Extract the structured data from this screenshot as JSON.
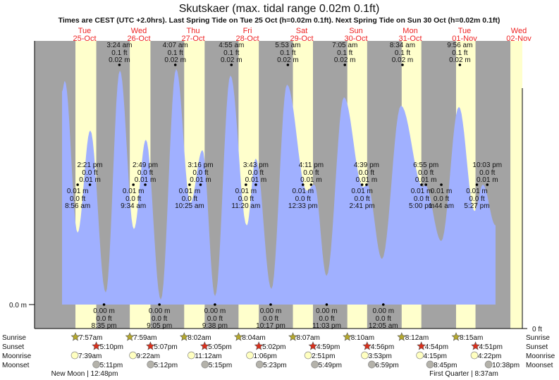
{
  "chart_data": {
    "type": "area",
    "title": "Skutskaer (max. tidal range 0.02m 0.1ft)",
    "subtitle": "Times are CEST (UTC +2.0hrs). Last Spring Tide on Tue 25 Oct (h=0.02m 0.1ft). Next Spring Tide on Sun 30 Oct (h=0.02m 0.1ft)",
    "y_left_label": "0.0 m",
    "y_right_label": "0 ft",
    "ylim_m": [
      0,
      0.02
    ],
    "days": [
      {
        "dow": "Tue",
        "date": "25-Oct"
      },
      {
        "dow": "Wed",
        "date": "26-Oct"
      },
      {
        "dow": "Thu",
        "date": "27-Oct"
      },
      {
        "dow": "Fri",
        "date": "28-Oct"
      },
      {
        "dow": "Sat",
        "date": "29-Oct"
      },
      {
        "dow": "Sun",
        "date": "30-Oct"
      },
      {
        "dow": "Mon",
        "date": "31-Oct"
      },
      {
        "dow": "Tue",
        "date": "01-Nov"
      },
      {
        "dow": "Wed",
        "date": "02-Nov"
      }
    ],
    "curve_hours_m": [
      [
        2.03,
        0.0178
      ],
      [
        3.27,
        0.01865
      ],
      [
        8.9,
        0.006
      ],
      [
        14.5,
        0.01453
      ],
      [
        21.35,
        0.001
      ],
      [
        27.6,
        0.01953
      ],
      [
        33.8,
        0.0063
      ],
      [
        39.1,
        0.01376
      ],
      [
        45.7,
        0.0004
      ],
      [
        52.5,
        0.01965
      ],
      [
        58.8,
        0.0085
      ],
      [
        64.1,
        0.01288
      ],
      [
        69.7,
        0.0007
      ],
      [
        76.5,
        0.01912
      ],
      [
        83.7,
        0.0066
      ],
      [
        87.7,
        0.01218
      ],
      [
        94.6,
        0.0013
      ],
      [
        101.5,
        0.01835
      ],
      [
        110.2,
        0.0095
      ],
      [
        113.6,
        0.01
      ],
      [
        119,
        0.0024
      ],
      [
        126.7,
        0.0173
      ],
      [
        135.1,
        0.0098
      ],
      [
        137,
        0.01
      ],
      [
        143.5,
        0.0038
      ],
      [
        151.9,
        0.0166
      ],
      [
        161.6,
        0.0098
      ],
      [
        162.5,
        0.01
      ],
      [
        169.7,
        0.0053
      ],
      [
        177.5,
        0.0165
      ],
      [
        184.4,
        0.0078
      ],
      [
        188.1,
        0.01
      ],
      [
        193.7,
        0.0066
      ]
    ],
    "extremes": [
      {
        "day": 1,
        "time": "3:24 am",
        "ft": "0.1 ft",
        "m": "0.02 m",
        "h": 0.02,
        "kind": "high"
      },
      {
        "day": 2,
        "time": "4:07 am",
        "ft": "0.1 ft",
        "m": "0.02 m",
        "h": 0.02,
        "kind": "high"
      },
      {
        "day": 3,
        "time": "4:55 am",
        "ft": "0.1 ft",
        "m": "0.02 m",
        "h": 0.02,
        "kind": "high"
      },
      {
        "day": 4,
        "time": "5:53 am",
        "ft": "0.1 ft",
        "m": "0.02 m",
        "h": 0.02,
        "kind": "high"
      },
      {
        "day": 5,
        "time": "7:05 am",
        "ft": "0.1 ft",
        "m": "0.02 m",
        "h": 0.02,
        "kind": "high"
      },
      {
        "day": 6,
        "time": "8:34 am",
        "ft": "0.1 ft",
        "m": "0.02 m",
        "h": 0.02,
        "kind": "high"
      },
      {
        "day": 7,
        "time": "9:56 am",
        "ft": "0.1 ft",
        "m": "0.02 m",
        "h": 0.02,
        "kind": "high"
      },
      {
        "day": 0,
        "time": "2:21 pm",
        "ft": "0.0 ft",
        "m": "0.01 m",
        "h": 0.01,
        "kind": "high"
      },
      {
        "day": 1,
        "time": "2:49 pm",
        "ft": "0.0 ft",
        "m": "0.01 m",
        "h": 0.01,
        "kind": "high"
      },
      {
        "day": 2,
        "time": "3:16 pm",
        "ft": "0.0 ft",
        "m": "0.01 m",
        "h": 0.01,
        "kind": "high"
      },
      {
        "day": 3,
        "time": "3:43 pm",
        "ft": "0.0 ft",
        "m": "0.01 m",
        "h": 0.01,
        "kind": "high"
      },
      {
        "day": 4,
        "time": "4:11 pm",
        "ft": "0.0 ft",
        "m": "0.01 m",
        "h": 0.01,
        "kind": "high"
      },
      {
        "day": 5,
        "time": "4:39 pm",
        "ft": "0.0 ft",
        "m": "0.01 m",
        "h": 0.01,
        "kind": "high"
      },
      {
        "day": 6,
        "time": "6:55 pm",
        "ft": "0.0 ft",
        "m": "0.01 m",
        "h": 0.01,
        "kind": "high"
      },
      {
        "day": 7,
        "time": "10:03 pm",
        "ft": "0.0 ft",
        "m": "0.01 m",
        "h": 0.01,
        "kind": "high"
      },
      {
        "day": 0,
        "time": "8:56 am",
        "ft": "0.0 ft",
        "m": "0.01 m",
        "h": 0.01,
        "kind": "low"
      },
      {
        "day": 1,
        "time": "9:34 am",
        "ft": "0.0 ft",
        "m": "0.01 m",
        "h": 0.01,
        "kind": "low"
      },
      {
        "day": 2,
        "time": "10:25 am",
        "ft": "0.0 ft",
        "m": "0.01 m",
        "h": 0.01,
        "kind": "low"
      },
      {
        "day": 3,
        "time": "11:20 am",
        "ft": "0.0 ft",
        "m": "0.01 m",
        "h": 0.01,
        "kind": "low"
      },
      {
        "day": 4,
        "time": "12:33 pm",
        "ft": "0.0 ft",
        "m": "0.01 m",
        "h": 0.01,
        "kind": "low"
      },
      {
        "day": 5,
        "time": "2:41 pm",
        "ft": "0.0 ft",
        "m": "0.01 m",
        "h": 0.01,
        "kind": "low"
      },
      {
        "day": 6,
        "time": "5:00 pm",
        "ft": "0.0 ft",
        "m": "0.01 m",
        "h": 0.01,
        "kind": "low"
      },
      {
        "day": 7,
        "time": "1:44 am",
        "ft": "0.0 ft",
        "m": "0.01 m",
        "h": 0.01,
        "kind": "low"
      },
      {
        "day": 7,
        "time": "5:27 pm",
        "ft": "0.0 ft",
        "m": "0.01 m",
        "h": 0.01,
        "kind": "low"
      },
      {
        "day": 0,
        "time": "8:35 pm",
        "ft": "0.0 ft",
        "m": "0.00 m",
        "h": 0,
        "kind": "low"
      },
      {
        "day": 1,
        "time": "9:05 pm",
        "ft": "0.0 ft",
        "m": "0.00 m",
        "h": 0,
        "kind": "low"
      },
      {
        "day": 2,
        "time": "9:38 pm",
        "ft": "0.0 ft",
        "m": "0.00 m",
        "h": 0,
        "kind": "low"
      },
      {
        "day": 3,
        "time": "10:17 pm",
        "ft": "0.0 ft",
        "m": "0.00 m",
        "h": 0,
        "kind": "low"
      },
      {
        "day": 4,
        "time": "11:03 pm",
        "ft": "0.0 ft",
        "m": "0.00 m",
        "h": 0,
        "kind": "low"
      },
      {
        "day": 6,
        "time": "12:05 am",
        "ft": "0.0 ft",
        "m": "0.00 m",
        "h": 0,
        "kind": "low"
      }
    ],
    "rows": {
      "labels": {
        "sunrise": "Sunrise",
        "sunset": "Sunset",
        "moonrise": "Moonrise",
        "moonset": "Moonset"
      },
      "sunrise": [
        "7:57am",
        "7:59am",
        "8:02am",
        "8:04am",
        "8:07am",
        "8:10am",
        "8:12am",
        "8:15am"
      ],
      "sunset": [
        "5:10pm",
        "5:07pm",
        "5:05pm",
        "5:02pm",
        "4:59pm",
        "4:56pm",
        "4:54pm",
        "4:51pm"
      ],
      "moonrise": [
        "7:39am",
        "9:22am",
        "11:12am",
        "1:06pm",
        "2:51pm",
        "3:53pm",
        "4:15pm",
        "4:22pm"
      ],
      "moonset": [
        "5:11pm",
        "5:12pm",
        "5:15pm",
        "5:23pm",
        "5:49pm",
        "6:59pm",
        "8:45pm",
        "10:38pm"
      ]
    },
    "moon_phases": [
      {
        "day": 0,
        "label": "New Moon | 12:48pm"
      },
      {
        "day": 7,
        "label": "First Quarter | 8:37am"
      }
    ],
    "colors": {
      "night": "#a3a3a3",
      "day": "#ffffcc",
      "water": "#a0b0ff",
      "day_label": "#ee2222",
      "sunrise": "#b5a82e",
      "sunset": "#d9301c",
      "moonrise": "#ffffc0",
      "moonset": "#b4b2aa"
    }
  }
}
